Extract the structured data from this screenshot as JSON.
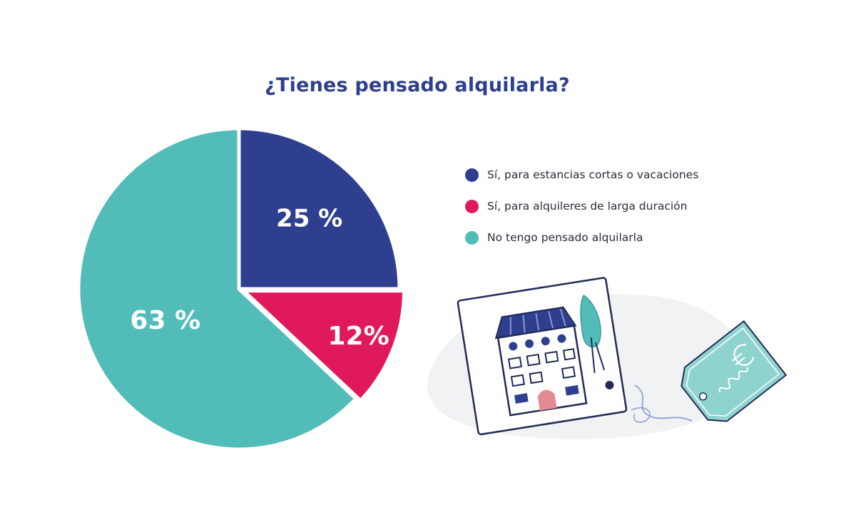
{
  "chart_data": {
    "type": "pie",
    "title": "¿Tienes pensado alquilarla?",
    "slices": [
      {
        "name": "Sí, para estancias cortas o vacaciones",
        "value": 25,
        "label": "25 %",
        "color": "#2e3f8f"
      },
      {
        "name": "Sí, para alquileres de larga duración",
        "value": 12,
        "label": "12%",
        "color": "#e0195a"
      },
      {
        "name": "No tengo pensado alquilarla",
        "value": 63,
        "label": "63 %",
        "color": "#52bcb9"
      }
    ],
    "legend_position": "right"
  },
  "illustration": {
    "icons": [
      "house-card-icon",
      "tree-icon",
      "price-tag-icon",
      "euro-icon"
    ]
  }
}
